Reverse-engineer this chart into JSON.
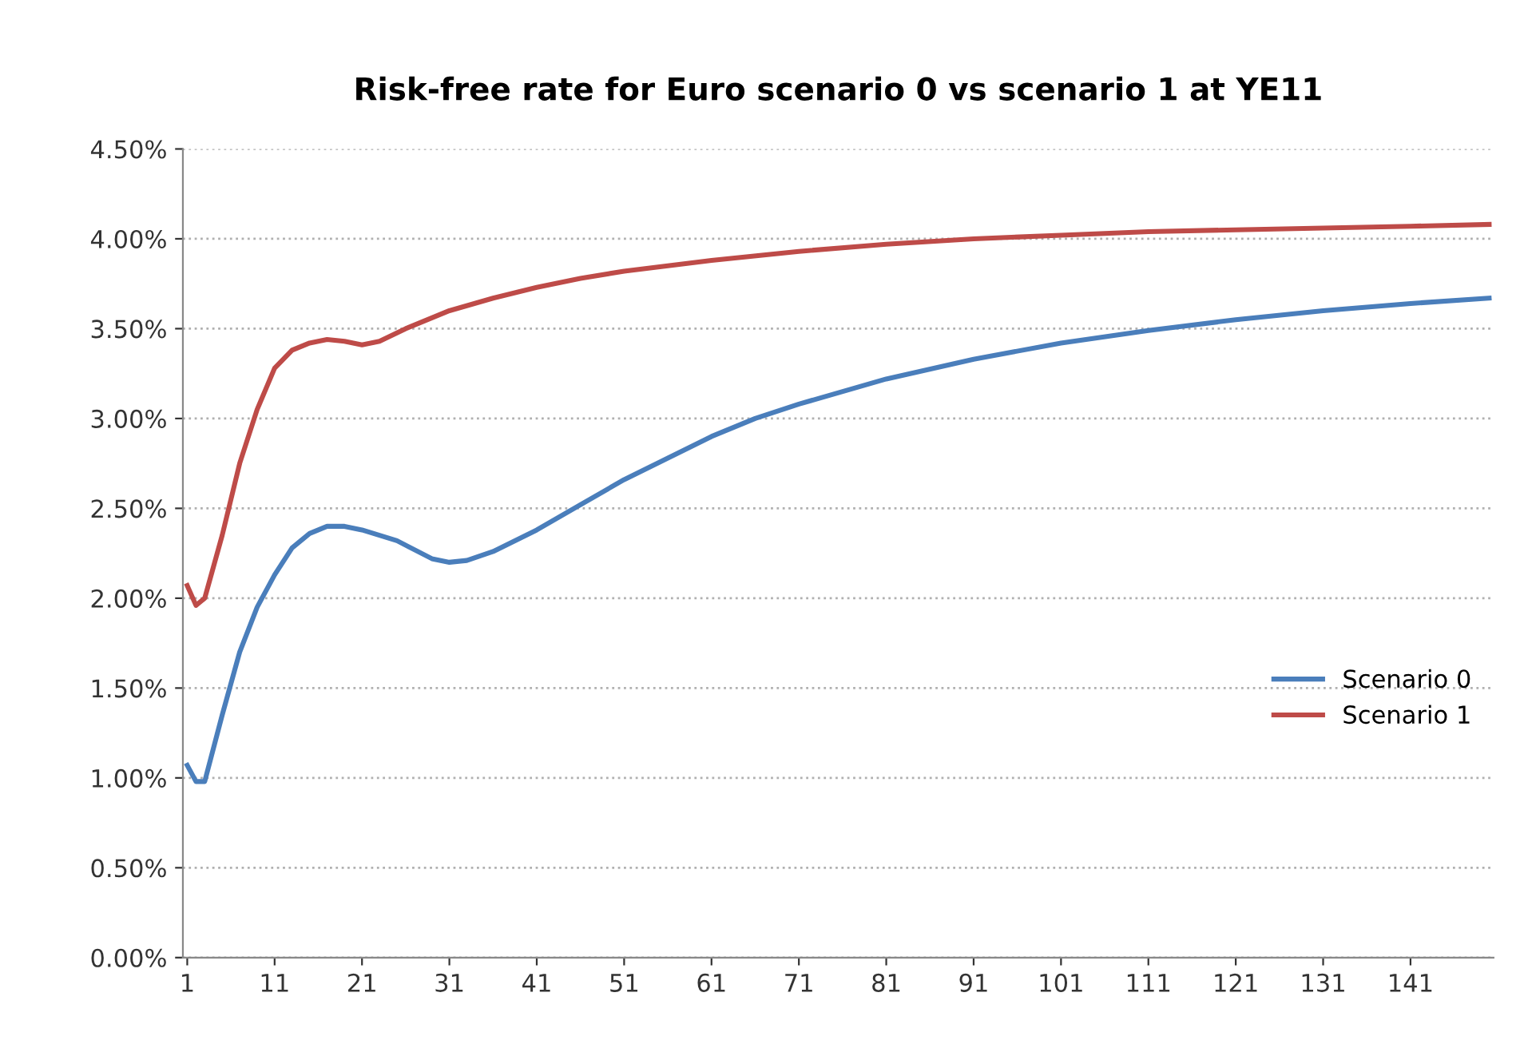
{
  "chart_data": {
    "type": "line",
    "title": "Risk-free rate for Euro scenario 0 vs scenario 1 at YE11",
    "xlim": [
      0.5,
      150.5
    ],
    "xticks": [
      1,
      11,
      21,
      31,
      41,
      51,
      61,
      71,
      81,
      91,
      101,
      111,
      121,
      131,
      141
    ],
    "ylim": [
      0,
      4.5
    ],
    "yticks": [
      {
        "value": 0,
        "label": "0.00%"
      },
      {
        "value": 0.5,
        "label": "0.50%"
      },
      {
        "value": 1,
        "label": "1.00%"
      },
      {
        "value": 1.5,
        "label": "1.50%"
      },
      {
        "value": 2,
        "label": "2.00%"
      },
      {
        "value": 2.5,
        "label": "2.50%"
      },
      {
        "value": 3,
        "label": "3.00%"
      },
      {
        "value": 3.5,
        "label": "3.50%"
      },
      {
        "value": 4,
        "label": "4.00%"
      },
      {
        "value": 4.5,
        "label": "4.50%"
      }
    ],
    "grid": "y",
    "legend": "right",
    "marker": "none",
    "line_style": "solid",
    "series": [
      {
        "name": "Scenario 0",
        "color": "#4a7ebb",
        "x": [
          1,
          2,
          3,
          5,
          7,
          9,
          11,
          13,
          15,
          17,
          19,
          21,
          25,
          29,
          31,
          33,
          36,
          41,
          46,
          51,
          56,
          61,
          66,
          71,
          81,
          91,
          101,
          111,
          121,
          131,
          141,
          150
        ],
        "values": [
          1.07,
          0.98,
          0.98,
          1.35,
          1.7,
          1.95,
          2.13,
          2.28,
          2.36,
          2.4,
          2.4,
          2.38,
          2.32,
          2.22,
          2.2,
          2.21,
          2.26,
          2.38,
          2.52,
          2.66,
          2.78,
          2.9,
          3.0,
          3.08,
          3.22,
          3.33,
          3.42,
          3.49,
          3.55,
          3.6,
          3.64,
          3.67
        ]
      },
      {
        "name": "Scenario 1",
        "color": "#be4b48",
        "x": [
          1,
          2,
          3,
          5,
          7,
          9,
          11,
          13,
          15,
          17,
          19,
          21,
          23,
          26,
          31,
          36,
          41,
          46,
          51,
          61,
          71,
          81,
          91,
          101,
          111,
          121,
          131,
          141,
          150
        ],
        "values": [
          2.07,
          1.96,
          2.0,
          2.35,
          2.75,
          3.05,
          3.28,
          3.38,
          3.42,
          3.44,
          3.43,
          3.41,
          3.43,
          3.5,
          3.6,
          3.67,
          3.73,
          3.78,
          3.82,
          3.88,
          3.93,
          3.97,
          4.0,
          4.02,
          4.04,
          4.05,
          4.06,
          4.07,
          4.08
        ]
      }
    ]
  }
}
